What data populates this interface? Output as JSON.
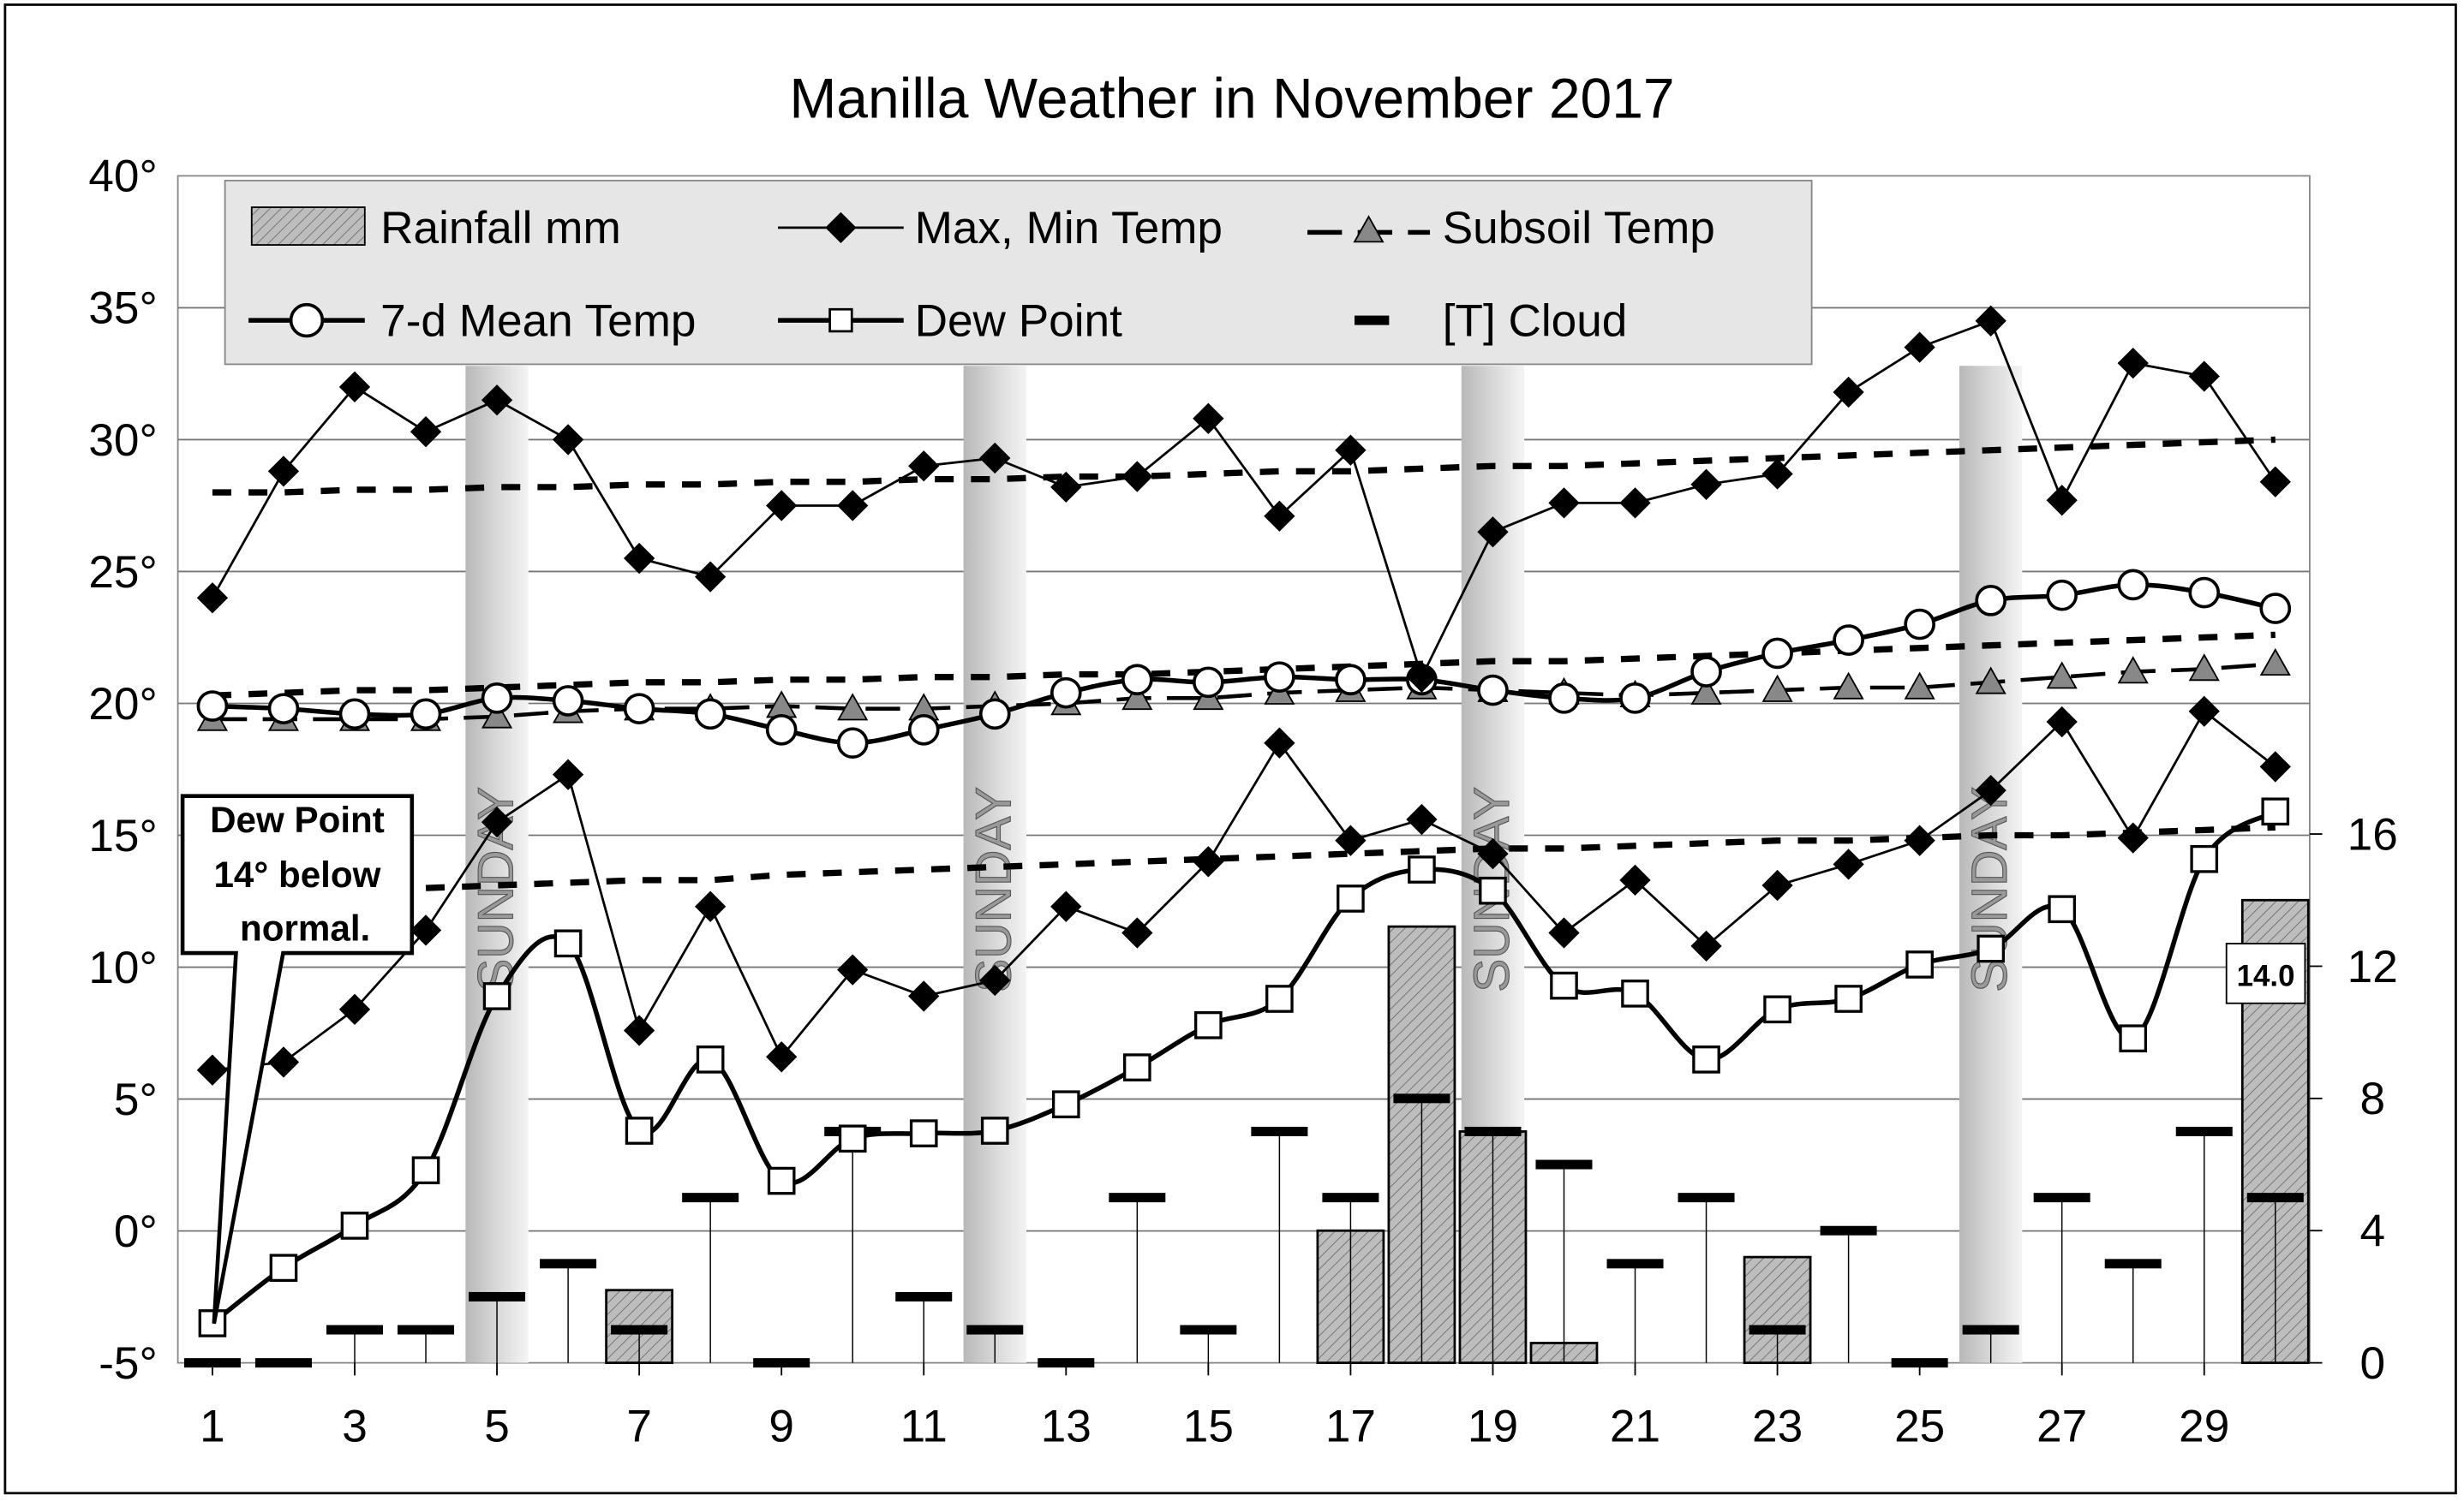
{
  "chart_data": {
    "type": "line",
    "title": "Manilla Weather in November 2017",
    "xlabel": "",
    "ylabel": "",
    "xlim": [
      1,
      30
    ],
    "ylim": [
      -5,
      40
    ],
    "y2lim": [
      0,
      16
    ],
    "grid": true,
    "x_ticks": [
      "1",
      "3",
      "5",
      "7",
      "9",
      "11",
      "13",
      "15",
      "17",
      "19",
      "21",
      "23",
      "25",
      "27",
      "29"
    ],
    "y_ticks": [
      "-5°",
      "0°",
      "5°",
      "10°",
      "15°",
      "20°",
      "25°",
      "30°",
      "35°",
      "40°"
    ],
    "y2_ticks": [
      "0",
      "4",
      "8",
      "12",
      "16"
    ],
    "legend": {
      "placement": "top-left",
      "entries": [
        "Rainfall mm",
        "Max, Min Temp",
        "Subsoil Temp",
        "7-d Mean Temp",
        "Dew Point",
        "[T] Cloud"
      ]
    },
    "days": [
      1,
      2,
      3,
      4,
      5,
      6,
      7,
      8,
      9,
      10,
      11,
      12,
      13,
      14,
      15,
      16,
      17,
      18,
      19,
      20,
      21,
      22,
      23,
      24,
      25,
      26,
      27,
      28,
      29,
      30
    ],
    "series": [
      {
        "name": "Max Temp",
        "values": [
          24.0,
          28.8,
          32.0,
          30.3,
          31.5,
          30.0,
          25.5,
          24.8,
          27.5,
          27.5,
          29.0,
          29.3,
          28.2,
          28.6,
          30.8,
          27.1,
          29.6,
          21.0,
          26.5,
          27.6,
          27.6,
          28.3,
          28.7,
          31.8,
          33.5,
          34.5,
          27.7,
          32.9,
          32.4,
          28.4
        ]
      },
      {
        "name": "Min Temp",
        "values": [
          6.1,
          6.4,
          8.4,
          11.4,
          15.5,
          17.3,
          7.6,
          12.3,
          6.6,
          9.9,
          8.9,
          9.5,
          12.3,
          11.3,
          14.0,
          18.5,
          14.8,
          15.6,
          14.3,
          11.3,
          13.3,
          10.8,
          13.1,
          13.9,
          14.8,
          16.7,
          19.3,
          14.9,
          19.7,
          17.6
        ]
      },
      {
        "name": "7-d Mean Temp",
        "values": [
          19.9,
          19.8,
          19.6,
          19.6,
          20.2,
          20.1,
          19.8,
          19.6,
          19.0,
          18.5,
          19.0,
          19.6,
          20.4,
          20.9,
          20.8,
          21.0,
          20.9,
          20.9,
          20.5,
          20.2,
          20.2,
          21.2,
          21.9,
          22.4,
          23.0,
          23.9,
          24.1,
          24.5,
          24.2,
          23.6
        ]
      },
      {
        "name": "Dew Point",
        "values": [
          -3.5,
          -1.4,
          0.2,
          2.3,
          8.9,
          10.9,
          3.8,
          6.5,
          1.9,
          3.5,
          3.7,
          3.8,
          4.8,
          6.2,
          7.8,
          8.8,
          12.6,
          13.7,
          12.9,
          9.3,
          9.0,
          6.5,
          8.4,
          8.8,
          10.1,
          10.7,
          12.2,
          7.3,
          14.1,
          15.9
        ]
      },
      {
        "name": "Subsoil Temp",
        "values": [
          19.4,
          19.4,
          19.4,
          19.4,
          19.5,
          19.7,
          19.8,
          19.8,
          19.9,
          19.8,
          19.8,
          19.9,
          20.0,
          20.2,
          20.2,
          20.4,
          20.5,
          20.6,
          20.5,
          20.4,
          20.3,
          20.4,
          20.5,
          20.6,
          20.6,
          20.8,
          21.0,
          21.2,
          21.3,
          21.5
        ]
      },
      {
        "name": "Normal Max",
        "values": [
          28.0,
          28.0,
          28.1,
          28.1,
          28.2,
          28.2,
          28.3,
          28.3,
          28.4,
          28.4,
          28.5,
          28.5,
          28.6,
          28.6,
          28.7,
          28.8,
          28.8,
          28.9,
          29.0,
          29.0,
          29.1,
          29.2,
          29.3,
          29.4,
          29.5,
          29.6,
          29.7,
          29.8,
          29.9,
          30.0
        ]
      },
      {
        "name": "Normal Mean",
        "values": [
          20.3,
          20.4,
          20.5,
          20.5,
          20.6,
          20.7,
          20.8,
          20.8,
          20.9,
          20.9,
          21.0,
          21.0,
          21.1,
          21.1,
          21.2,
          21.3,
          21.4,
          21.5,
          21.6,
          21.6,
          21.7,
          21.8,
          21.9,
          22.0,
          22.1,
          22.2,
          22.3,
          22.4,
          22.5,
          22.6
        ]
      },
      {
        "name": "Normal Min",
        "values": [
          null,
          null,
          null,
          13.0,
          13.1,
          13.2,
          13.3,
          13.3,
          13.5,
          13.6,
          13.7,
          13.8,
          13.9,
          14.0,
          14.1,
          14.2,
          14.3,
          14.4,
          14.5,
          14.5,
          14.6,
          14.7,
          14.8,
          14.8,
          14.9,
          15.0,
          15.0,
          15.1,
          15.2,
          15.3
        ]
      }
    ],
    "rainfall_mm": {
      "days": [
        7,
        17,
        18,
        19,
        20,
        23,
        30
      ],
      "values": [
        2.2,
        4.0,
        13.2,
        7.0,
        0.6,
        3.2,
        14.0
      ]
    },
    "cloud_octas": [
      0,
      0,
      1,
      1,
      2,
      3,
      1,
      5,
      0,
      7,
      2,
      1,
      0,
      5,
      1,
      7,
      5,
      8,
      7,
      6,
      3,
      5,
      1,
      4,
      0,
      1,
      5,
      3,
      7,
      5
    ],
    "sundays": [
      5,
      12,
      19,
      26
    ],
    "sunday_label": "SUNDAY",
    "annotations": {
      "callout": [
        "Dew Point",
        "14° below",
        "normal."
      ],
      "rain_label": "14.0"
    }
  }
}
